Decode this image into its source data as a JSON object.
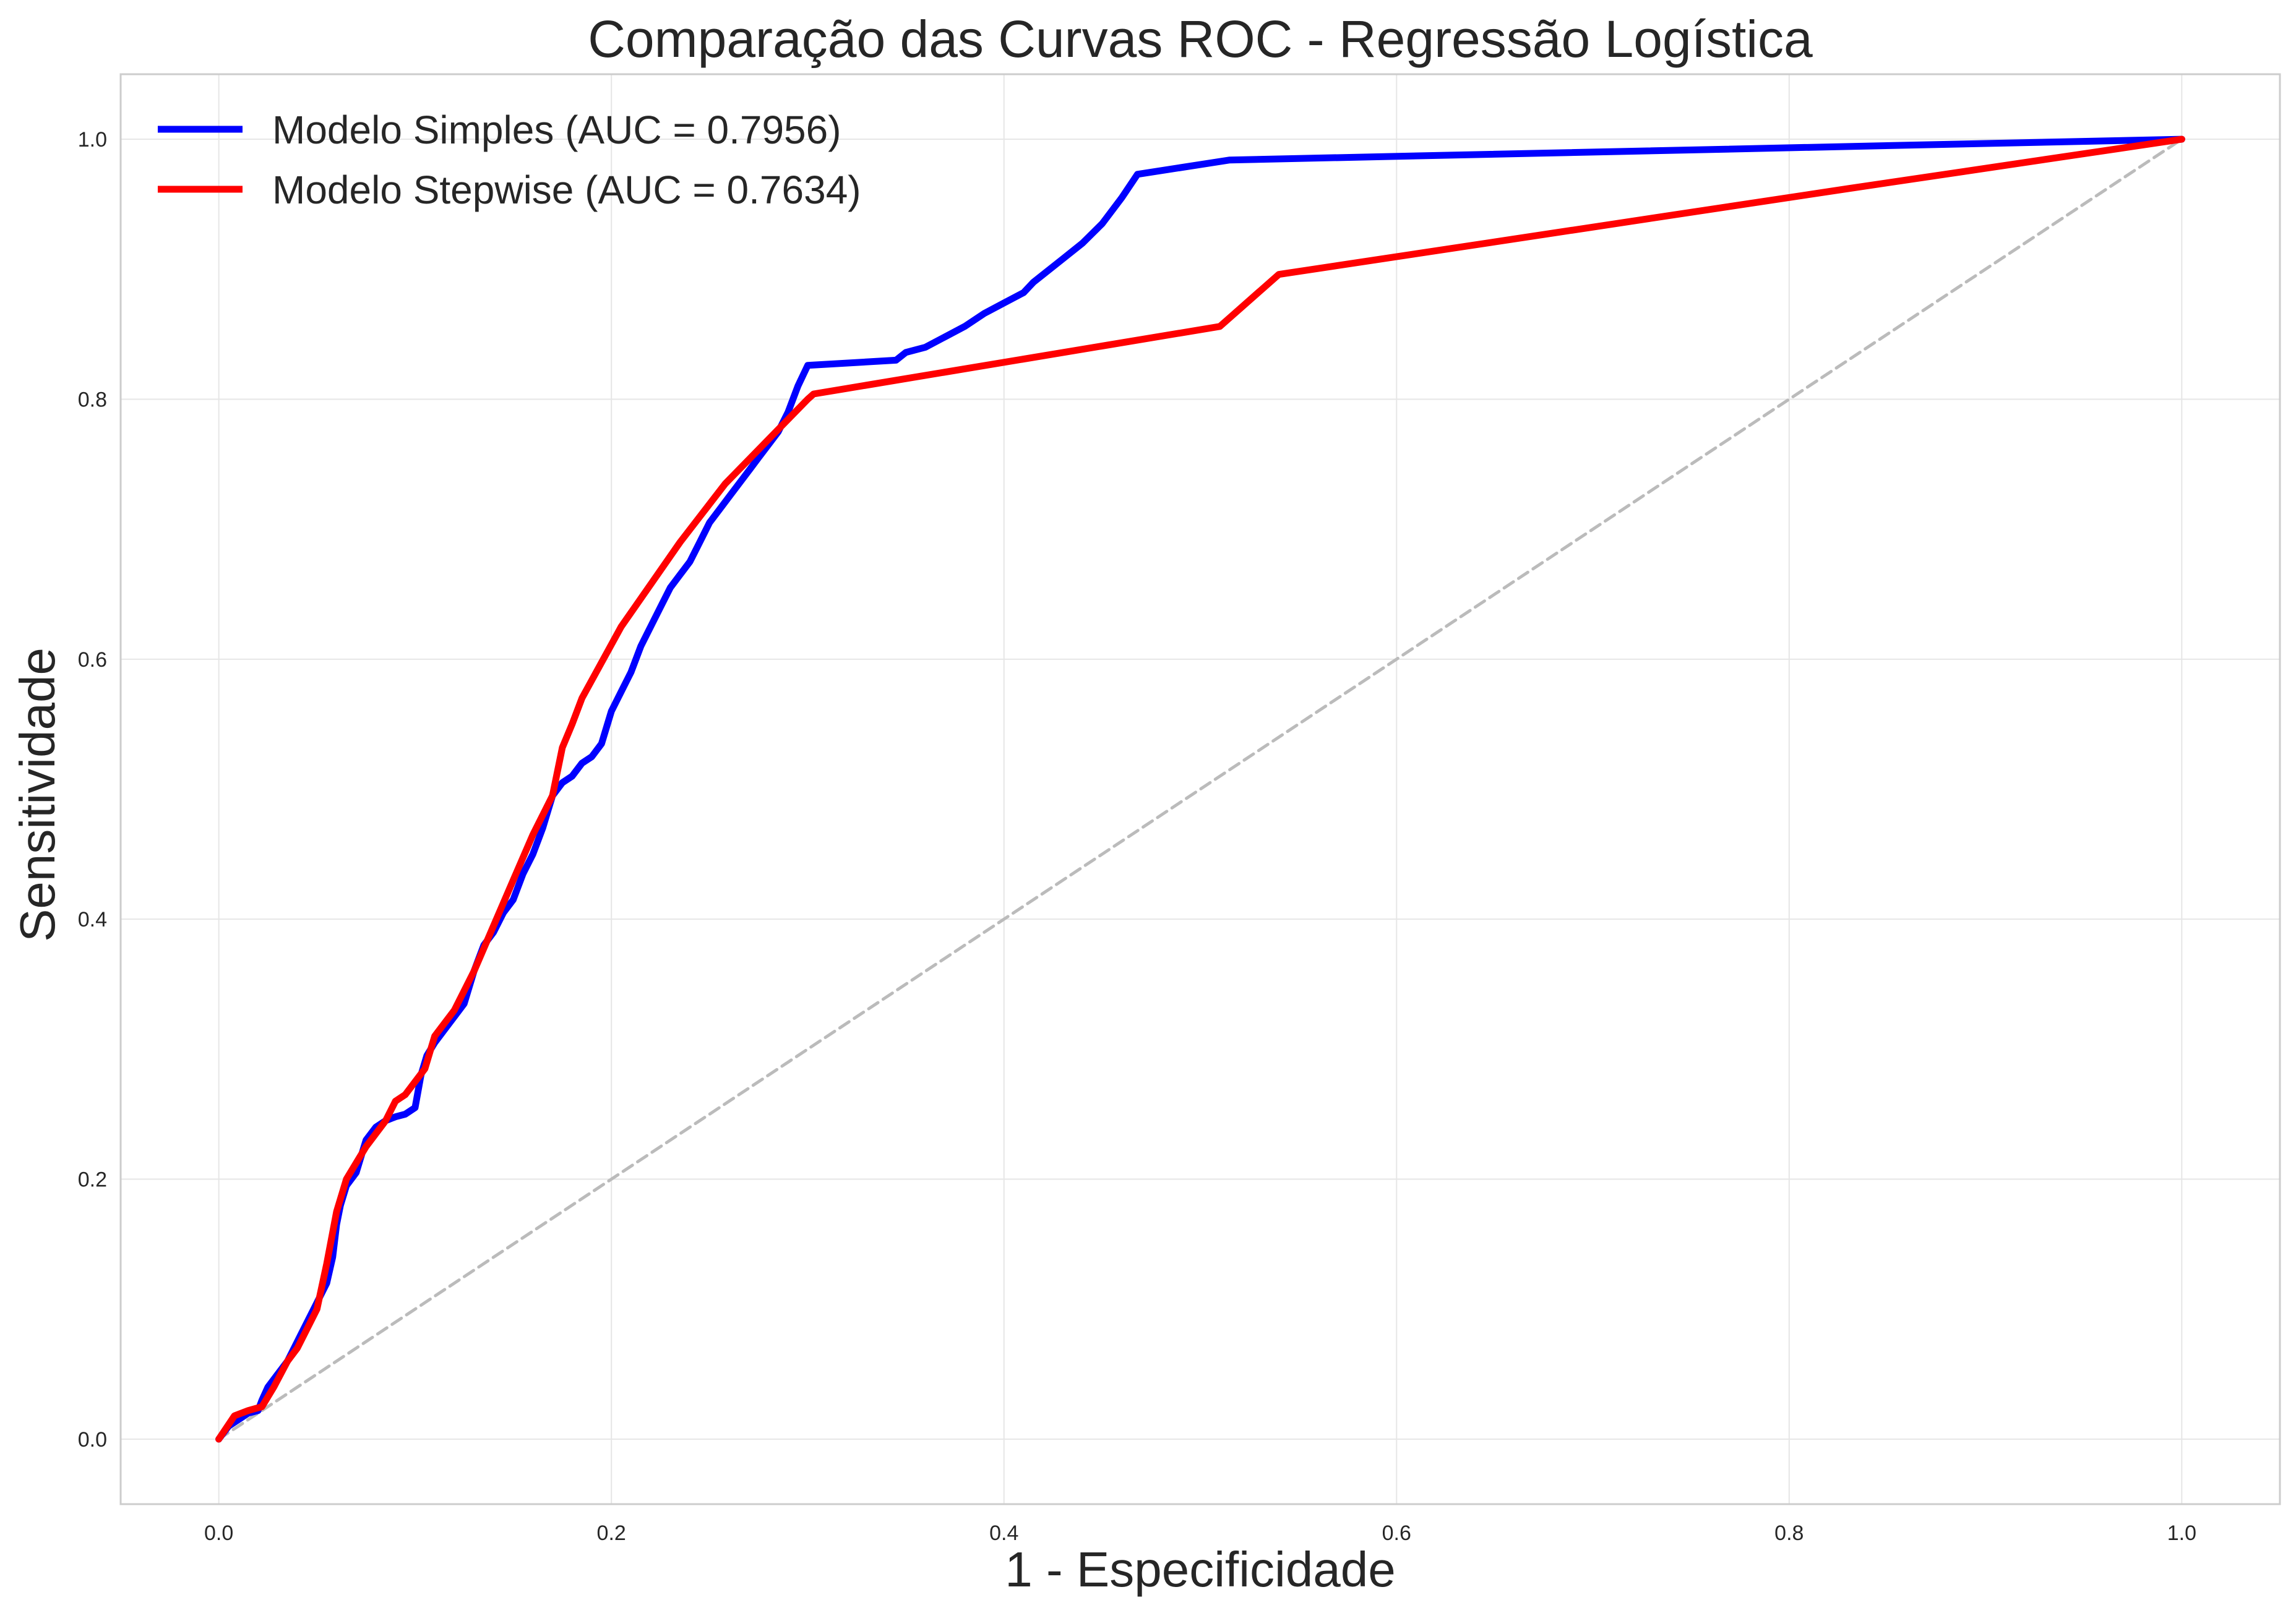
{
  "chart_data": {
    "type": "line",
    "title": "Comparação das Curvas ROC - Regressão Logística",
    "xlabel": "1 - Especificidade",
    "ylabel": "Sensitividade",
    "xlim": [
      -0.05,
      1.05
    ],
    "ylim": [
      -0.05,
      1.05
    ],
    "x_ticks": [
      "0.0",
      "0.2",
      "0.4",
      "0.6",
      "0.8",
      "1.0"
    ],
    "y_ticks": [
      "0.0",
      "0.2",
      "0.4",
      "0.6",
      "0.8",
      "1.0"
    ],
    "grid": true,
    "legend_position": "top-left",
    "legend": [
      "Modelo Simples (AUC = 0.7956)",
      "Modelo Stepwise (AUC = 0.7634)"
    ],
    "series": [
      {
        "name": "Modelo Simples (AUC = 0.7956)",
        "color": "#0000ff",
        "x": [
          0.0,
          0.005,
          0.01,
          0.015,
          0.02,
          0.022,
          0.025,
          0.03,
          0.035,
          0.04,
          0.045,
          0.05,
          0.055,
          0.058,
          0.06,
          0.062,
          0.065,
          0.07,
          0.075,
          0.08,
          0.085,
          0.09,
          0.095,
          0.1,
          0.103,
          0.106,
          0.11,
          0.115,
          0.12,
          0.125,
          0.13,
          0.135,
          0.14,
          0.145,
          0.15,
          0.155,
          0.16,
          0.165,
          0.17,
          0.175,
          0.18,
          0.185,
          0.19,
          0.195,
          0.2,
          0.205,
          0.21,
          0.215,
          0.22,
          0.225,
          0.23,
          0.235,
          0.24,
          0.245,
          0.25,
          0.255,
          0.26,
          0.265,
          0.27,
          0.275,
          0.28,
          0.285,
          0.29,
          0.295,
          0.3,
          0.345,
          0.35,
          0.36,
          0.37,
          0.38,
          0.39,
          0.4,
          0.41,
          0.415,
          0.42,
          0.43,
          0.44,
          0.45,
          0.46,
          0.468,
          0.515,
          1.0
        ],
        "y": [
          0.0,
          0.01,
          0.015,
          0.02,
          0.022,
          0.03,
          0.04,
          0.05,
          0.06,
          0.075,
          0.09,
          0.105,
          0.12,
          0.14,
          0.165,
          0.18,
          0.195,
          0.205,
          0.23,
          0.24,
          0.245,
          0.248,
          0.25,
          0.255,
          0.28,
          0.295,
          0.305,
          0.315,
          0.325,
          0.335,
          0.36,
          0.38,
          0.39,
          0.405,
          0.415,
          0.435,
          0.45,
          0.47,
          0.495,
          0.505,
          0.51,
          0.52,
          0.525,
          0.535,
          0.56,
          0.575,
          0.59,
          0.61,
          0.625,
          0.64,
          0.655,
          0.665,
          0.675,
          0.69,
          0.705,
          0.715,
          0.725,
          0.735,
          0.745,
          0.755,
          0.765,
          0.775,
          0.79,
          0.81,
          0.826,
          0.83,
          0.836,
          0.84,
          0.848,
          0.856,
          0.866,
          0.874,
          0.882,
          0.89,
          0.896,
          0.908,
          0.92,
          0.935,
          0.955,
          0.973,
          0.984,
          1.0
        ]
      },
      {
        "name": "Modelo Stepwise (AUC = 0.7634)",
        "color": "#ff0000",
        "x": [
          0.0,
          0.008,
          0.015,
          0.022,
          0.028,
          0.035,
          0.04,
          0.045,
          0.05,
          0.055,
          0.06,
          0.065,
          0.075,
          0.085,
          0.09,
          0.095,
          0.105,
          0.11,
          0.12,
          0.13,
          0.14,
          0.15,
          0.16,
          0.17,
          0.175,
          0.18,
          0.185,
          0.205,
          0.235,
          0.258,
          0.3,
          0.303,
          0.51,
          0.54,
          0.83,
          1.0
        ],
        "y": [
          0.0,
          0.018,
          0.022,
          0.025,
          0.04,
          0.06,
          0.07,
          0.085,
          0.1,
          0.135,
          0.175,
          0.2,
          0.225,
          0.245,
          0.26,
          0.265,
          0.285,
          0.31,
          0.33,
          0.36,
          0.395,
          0.43,
          0.465,
          0.495,
          0.532,
          0.55,
          0.57,
          0.625,
          0.69,
          0.735,
          0.8,
          0.804,
          0.856,
          0.896,
          0.962,
          1.0
        ]
      },
      {
        "name": "",
        "color": "#bbbbbb",
        "style": "dashed",
        "x": [
          0.0,
          1.0
        ],
        "y": [
          0.0,
          1.0
        ]
      }
    ]
  }
}
